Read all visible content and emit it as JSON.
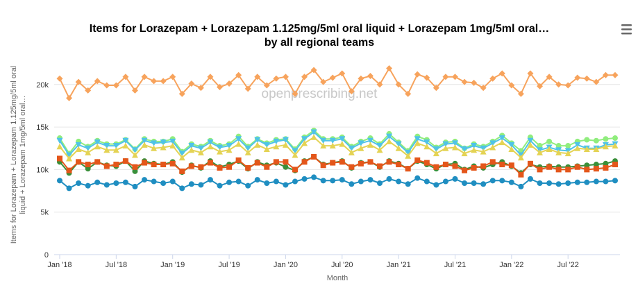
{
  "chart_data": {
    "type": "line",
    "title_line1": "Items for Lorazepam + Lorazepam 1.125mg/5ml oral liquid + Lorazepam 1mg/5ml oral…",
    "title_line2": "by all regional teams",
    "xlabel": "Month",
    "ylabel_line1": "Items for Lorazepam + Lorazepam 1.125mg/5ml oral",
    "ylabel_line2": "liquid + Lorazepam 1mg/5ml oral…",
    "watermark": "openprescribing.net",
    "ylim": [
      0,
      23000
    ],
    "y_ticks": [
      0,
      5000,
      10000,
      15000,
      20000
    ],
    "y_tick_labels": [
      "0",
      "5k",
      "10k",
      "15k",
      "20k"
    ],
    "x_tick_index": [
      0,
      6,
      12,
      18,
      24,
      30,
      36,
      42,
      48,
      54
    ],
    "x_tick_labels": [
      "Jan '18",
      "Jul '18",
      "Jan '19",
      "Jul '19",
      "Jan '20",
      "Jul '20",
      "Jan '21",
      "Jul '21",
      "Jan '22",
      "Jul '22"
    ],
    "grid": true,
    "legend": "none",
    "months": [
      "2018-01",
      "2018-02",
      "2018-03",
      "2018-04",
      "2018-05",
      "2018-06",
      "2018-07",
      "2018-08",
      "2018-09",
      "2018-10",
      "2018-11",
      "2018-12",
      "2019-01",
      "2019-02",
      "2019-03",
      "2019-04",
      "2019-05",
      "2019-06",
      "2019-07",
      "2019-08",
      "2019-09",
      "2019-10",
      "2019-11",
      "2019-12",
      "2020-01",
      "2020-02",
      "2020-03",
      "2020-04",
      "2020-05",
      "2020-06",
      "2020-07",
      "2020-08",
      "2020-09",
      "2020-10",
      "2020-11",
      "2020-12",
      "2021-01",
      "2021-02",
      "2021-03",
      "2021-04",
      "2021-05",
      "2021-06",
      "2021-07",
      "2021-08",
      "2021-09",
      "2021-10",
      "2021-11",
      "2021-12",
      "2022-01",
      "2022-02",
      "2022-03",
      "2022-04",
      "2022-05",
      "2022-06",
      "2022-07",
      "2022-08",
      "2022-09",
      "2022-10",
      "2022-11",
      "2022-12"
    ],
    "series": [
      {
        "color": "#f7a35c",
        "marker": "diamond",
        "values": [
          20700,
          18400,
          20300,
          19300,
          20400,
          19900,
          19900,
          20900,
          19300,
          20900,
          20400,
          20400,
          20900,
          18900,
          20100,
          19600,
          20900,
          19700,
          20100,
          21100,
          19500,
          20900,
          19900,
          20700,
          20900,
          18900,
          20900,
          21700,
          20300,
          20800,
          21300,
          19200,
          20700,
          21000,
          20000,
          21900,
          20000,
          18900,
          21200,
          20800,
          19600,
          20900,
          20900,
          20300,
          20200,
          19600,
          20700,
          21300,
          19900,
          18900,
          21300,
          19800,
          20900,
          20000,
          19900,
          20800,
          20700,
          20300,
          21100,
          21100
        ]
      },
      {
        "color": "#90ed7d",
        "marker": "circle",
        "values": [
          13700,
          11900,
          13300,
          12700,
          13400,
          13000,
          13000,
          13500,
          12400,
          13600,
          13300,
          13300,
          13600,
          12100,
          13000,
          12700,
          13400,
          12800,
          13000,
          13900,
          12700,
          13600,
          13100,
          13500,
          13600,
          12400,
          13800,
          14600,
          13600,
          13600,
          13800,
          12700,
          13300,
          13700,
          13000,
          14200,
          13200,
          12200,
          13900,
          13500,
          12600,
          13200,
          13300,
          12500,
          13000,
          12700,
          13300,
          14000,
          13100,
          12200,
          13800,
          12800,
          13300,
          12800,
          12800,
          13300,
          13500,
          13400,
          13600,
          13700
        ]
      },
      {
        "color": "#4fc3e8",
        "marker": "triangle-down",
        "values": [
          13400,
          11700,
          12900,
          12500,
          13200,
          12800,
          12800,
          13400,
          12300,
          13400,
          13100,
          13200,
          13300,
          11900,
          12800,
          12500,
          13200,
          12600,
          12800,
          13600,
          12500,
          13500,
          12900,
          13300,
          13500,
          12200,
          13600,
          14400,
          13400,
          13400,
          13600,
          12500,
          13100,
          13400,
          12800,
          13900,
          13000,
          12000,
          13600,
          13200,
          12400,
          13000,
          13100,
          12400,
          12800,
          12500,
          13100,
          13700,
          12900,
          11700,
          13400,
          12300,
          12600,
          12300,
          12200,
          12900,
          12500,
          12500,
          12900,
          13000
        ]
      },
      {
        "color": "#e4d354",
        "marker": "triangle",
        "values": [
          12700,
          11300,
          12400,
          12000,
          12700,
          12300,
          12300,
          12800,
          11700,
          12900,
          12500,
          12600,
          12800,
          11400,
          12300,
          12000,
          12700,
          12100,
          12300,
          13000,
          12000,
          12900,
          12400,
          12700,
          12900,
          11700,
          13100,
          13800,
          12800,
          12800,
          13000,
          12000,
          12500,
          12900,
          12300,
          13300,
          12500,
          11600,
          13100,
          12700,
          11900,
          12500,
          12600,
          11900,
          12300,
          12100,
          12600,
          13200,
          12400,
          11400,
          12900,
          12000,
          12400,
          12000,
          11900,
          12500,
          12400,
          12400,
          12700,
          12800
        ]
      },
      {
        "color": "#3a8f3a",
        "marker": "circle",
        "values": [
          10900,
          9600,
          10900,
          10100,
          10900,
          10500,
          10400,
          11000,
          9800,
          11000,
          10700,
          10600,
          10900,
          9700,
          10500,
          10200,
          11000,
          10300,
          10600,
          11000,
          10100,
          10900,
          10500,
          10800,
          10300,
          9900,
          11000,
          11500,
          10600,
          10800,
          11000,
          10200,
          10800,
          10900,
          10300,
          11000,
          10700,
          10100,
          11000,
          10600,
          10100,
          10600,
          10700,
          10000,
          10400,
          10200,
          10600,
          10900,
          10400,
          9600,
          10600,
          10300,
          10400,
          10300,
          10300,
          10400,
          10500,
          10600,
          10700,
          11000
        ]
      },
      {
        "color": "#e4561a",
        "marker": "square",
        "values": [
          11300,
          9900,
          10900,
          10600,
          10900,
          10400,
          10600,
          11000,
          10300,
          10800,
          10600,
          10600,
          10700,
          9800,
          10400,
          10300,
          10800,
          10200,
          10300,
          11100,
          10200,
          10800,
          10300,
          10900,
          10900,
          10000,
          10900,
          11500,
          10500,
          10800,
          10900,
          10300,
          10700,
          10900,
          10400,
          10900,
          10600,
          10100,
          11100,
          10800,
          10300,
          10600,
          10400,
          9900,
          10200,
          10400,
          10900,
          10600,
          10500,
          9400,
          10700,
          10000,
          10300,
          10000,
          10000,
          10300,
          10000,
          10100,
          10200,
          10600
        ]
      },
      {
        "color": "#1f8ec1",
        "marker": "circle",
        "values": [
          8700,
          7800,
          8400,
          8100,
          8500,
          8200,
          8400,
          8500,
          8000,
          8800,
          8600,
          8400,
          8600,
          7800,
          8300,
          8200,
          8800,
          8100,
          8500,
          8600,
          8100,
          8800,
          8400,
          8600,
          8200,
          8600,
          8900,
          9100,
          8700,
          8700,
          8800,
          8300,
          8600,
          8800,
          8400,
          8900,
          8600,
          8300,
          9000,
          8600,
          8200,
          8600,
          8900,
          8400,
          8400,
          8300,
          8700,
          8700,
          8500,
          8000,
          8900,
          8400,
          8400,
          8300,
          8400,
          8500,
          8500,
          8600,
          8600,
          8700
        ]
      }
    ]
  }
}
